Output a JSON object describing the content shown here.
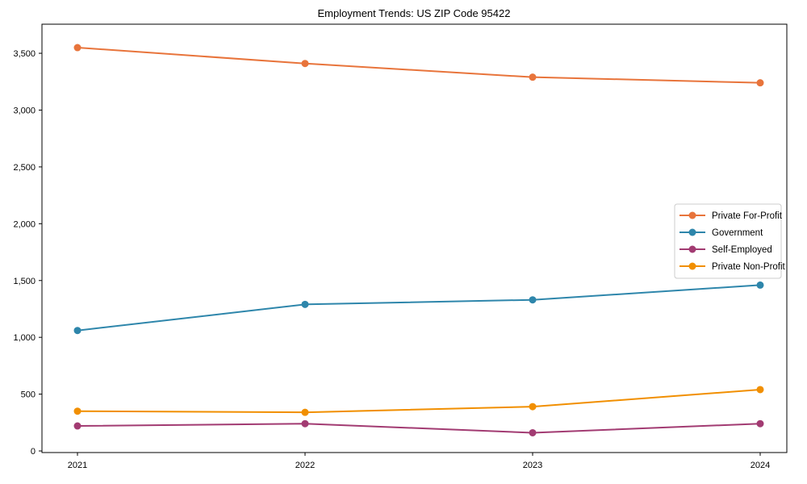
{
  "chart_data": {
    "type": "line",
    "title": "Employment Trends: US ZIP Code 95422",
    "categories": [
      "2021",
      "2022",
      "2023",
      "2024"
    ],
    "series": [
      {
        "name": "Private For-Profit",
        "color": "#E8743B",
        "values": [
          3550,
          3410,
          3290,
          3240
        ]
      },
      {
        "name": "Government",
        "color": "#2E86AB",
        "values": [
          1060,
          1290,
          1330,
          1460
        ]
      },
      {
        "name": "Self-Employed",
        "color": "#A23B72",
        "values": [
          220,
          240,
          160,
          240
        ]
      },
      {
        "name": "Private Non-Profit",
        "color": "#F18F01",
        "values": [
          350,
          340,
          390,
          540
        ]
      }
    ],
    "y_ticks": [
      0,
      500,
      1000,
      1500,
      2000,
      2500,
      3000,
      3500
    ],
    "ylim": [
      -14,
      3756
    ],
    "grid": false,
    "legend_position": "center-right",
    "xlabel": "",
    "ylabel": "",
    "spine_color": "#000000",
    "legend_border_color": "#cccccc"
  }
}
